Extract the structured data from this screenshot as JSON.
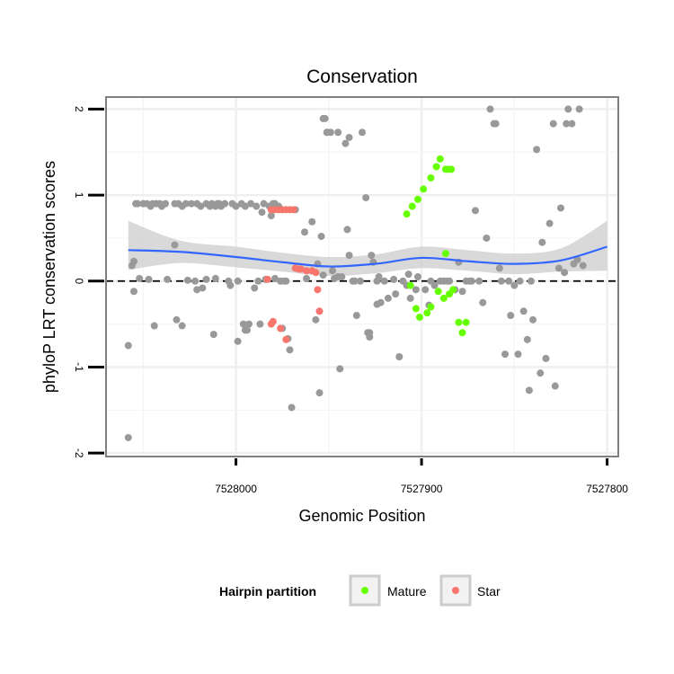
{
  "chart_data": {
    "type": "scatter",
    "title": "Conservation",
    "xlabel": "Genomic Position",
    "ylabel": "phyloP LRT conservation scores",
    "x_reversed": true,
    "xlim": [
      7528070,
      7527794
    ],
    "ylim": [
      -2.04,
      2.14
    ],
    "x_ticks": [
      7528000,
      7527900,
      7527800
    ],
    "x_tick_labels": [
      "7528000",
      "7527900",
      "7527800"
    ],
    "y_ticks": [
      -2,
      -1,
      0,
      1,
      2
    ],
    "y_tick_labels": [
      "-2",
      "-1",
      "0",
      "1",
      "2"
    ],
    "grid": true,
    "reference_line": {
      "y": 0,
      "style": "dashed",
      "color": "#000000"
    },
    "smooth": {
      "method": "loess",
      "color": "#3366ff",
      "band_color": "#cccccc",
      "x": [
        7528058,
        7528030,
        7528000,
        7527975,
        7527950,
        7527925,
        7527900,
        7527875,
        7527850,
        7527825,
        7527800
      ],
      "y": [
        0.36,
        0.34,
        0.28,
        0.22,
        0.17,
        0.2,
        0.27,
        0.23,
        0.2,
        0.24,
        0.4
      ],
      "lower": [
        0.13,
        0.21,
        0.16,
        0.11,
        0.06,
        0.09,
        0.15,
        0.12,
        0.08,
        0.11,
        0.12
      ],
      "upper": [
        0.7,
        0.47,
        0.4,
        0.33,
        0.28,
        0.31,
        0.4,
        0.36,
        0.32,
        0.38,
        0.7
      ]
    },
    "series": [
      {
        "key": "other",
        "color": "#999999",
        "points": [
          [
            7528058,
            -1.82
          ],
          [
            7528058,
            -0.75
          ],
          [
            7528056,
            0.18
          ],
          [
            7528055,
            0.23
          ],
          [
            7528055,
            -0.12
          ],
          [
            7528054,
            0.9
          ],
          [
            7528053,
            0.9
          ],
          [
            7528052,
            0.03
          ],
          [
            7528050,
            0.9
          ],
          [
            7528048,
            0.9
          ],
          [
            7528047,
            0.02
          ],
          [
            7528046,
            0.87
          ],
          [
            7528045,
            0.9
          ],
          [
            7528044,
            -0.52
          ],
          [
            7528043,
            0.9
          ],
          [
            7528041,
            0.9
          ],
          [
            7528040,
            0.87
          ],
          [
            7528038,
            0.9
          ],
          [
            7528037,
            0.02
          ],
          [
            7528033,
            0.42
          ],
          [
            7528033,
            0.9
          ],
          [
            7528032,
            -0.45
          ],
          [
            7528031,
            0.9
          ],
          [
            7528029,
            -0.52
          ],
          [
            7528029,
            0.87
          ],
          [
            7528027,
            0.9
          ],
          [
            7528026,
            0.01
          ],
          [
            7528024,
            0.9
          ],
          [
            7528022,
            0.0
          ],
          [
            7528021,
            -0.1
          ],
          [
            7528021,
            0.9
          ],
          [
            7528019,
            0.87
          ],
          [
            7528018,
            -0.08
          ],
          [
            7528016,
            0.9
          ],
          [
            7528016,
            0.02
          ],
          [
            7528014,
            0.87
          ],
          [
            7528013,
            0.9
          ],
          [
            7528012,
            -0.62
          ],
          [
            7528011,
            0.03
          ],
          [
            7528011,
            0.87
          ],
          [
            7528010,
            0.9
          ],
          [
            7528009,
            0.9
          ],
          [
            7528008,
            0.87
          ],
          [
            7528006,
            0.9
          ],
          [
            7528004,
            0.0
          ],
          [
            7528003,
            -0.05
          ],
          [
            7528002,
            0.9
          ],
          [
            7528000,
            0.87
          ],
          [
            7527999,
            -0.7
          ],
          [
            7527999,
            0.0
          ],
          [
            7527997,
            0.9
          ],
          [
            7527996,
            -0.5
          ],
          [
            7527995,
            0.87
          ],
          [
            7527995,
            -0.57
          ],
          [
            7527994,
            -0.57
          ],
          [
            7527993,
            -0.5
          ],
          [
            7527992,
            0.9
          ],
          [
            7527990,
            -0.08
          ],
          [
            7527989,
            0.87
          ],
          [
            7527988,
            0.0
          ],
          [
            7527987,
            -0.5
          ],
          [
            7527986,
            0.8
          ],
          [
            7527985,
            0.9
          ],
          [
            7527984,
            0.02
          ],
          [
            7527982,
            0.87
          ],
          [
            7527981,
            0.76
          ],
          [
            7527980,
            0.9
          ],
          [
            7527979,
            0.9
          ],
          [
            7527979,
            0.03
          ],
          [
            7527977,
            0.87
          ],
          [
            7527976,
            0.0
          ],
          [
            7527975,
            -0.55
          ],
          [
            7527974,
            0.0
          ],
          [
            7527973,
            0.0
          ],
          [
            7527972,
            -0.67
          ],
          [
            7527971,
            -0.8
          ],
          [
            7527970,
            -1.47
          ],
          [
            7527968,
            0.83
          ],
          [
            7527963,
            0.57
          ],
          [
            7527962,
            0.03
          ],
          [
            7527959,
            0.69
          ],
          [
            7527957,
            -0.45
          ],
          [
            7527956,
            0.2
          ],
          [
            7527955,
            -1.3
          ],
          [
            7527954,
            0.52
          ],
          [
            7527953,
            0.07
          ],
          [
            7527953,
            1.89
          ],
          [
            7527952,
            1.89
          ],
          [
            7527951,
            1.73
          ],
          [
            7527951,
            1.73
          ],
          [
            7527949,
            1.73
          ],
          [
            7527948,
            0.12
          ],
          [
            7527947,
            0.03
          ],
          [
            7527945,
            1.73
          ],
          [
            7527945,
            0.05
          ],
          [
            7527944,
            -1.02
          ],
          [
            7527943,
            0.05
          ],
          [
            7527941,
            1.6
          ],
          [
            7527940,
            0.6
          ],
          [
            7527939,
            1.67
          ],
          [
            7527939,
            0.3
          ],
          [
            7527937,
            0.0
          ],
          [
            7527936,
            0.0
          ],
          [
            7527935,
            -0.4
          ],
          [
            7527933,
            0.0
          ],
          [
            7527932,
            1.73
          ],
          [
            7527930,
            0.97
          ],
          [
            7527929,
            -0.6
          ],
          [
            7527928,
            -0.6
          ],
          [
            7527928,
            -0.65
          ],
          [
            7527927,
            0.3
          ],
          [
            7527926,
            0.22
          ],
          [
            7527924,
            0.0
          ],
          [
            7527924,
            -0.27
          ],
          [
            7527923,
            0.05
          ],
          [
            7527922,
            -0.25
          ],
          [
            7527920,
            0.0
          ],
          [
            7527918,
            -0.2
          ],
          [
            7527915,
            0.02
          ],
          [
            7527914,
            -0.15
          ],
          [
            7527912,
            -0.88
          ],
          [
            7527910,
            0.0
          ],
          [
            7527908,
            -0.05
          ],
          [
            7527907,
            0.08
          ],
          [
            7527906,
            -0.2
          ],
          [
            7527903,
            -0.1
          ],
          [
            7527902,
            0.05
          ],
          [
            7527898,
            -0.1
          ],
          [
            7527896,
            -0.28
          ],
          [
            7527895,
            0.0
          ],
          [
            7527893,
            -0.05
          ],
          [
            7527890,
            0.0
          ],
          [
            7527888,
            0.0
          ],
          [
            7527886,
            0.0
          ],
          [
            7527885,
            0.0
          ],
          [
            7527882,
            -0.1
          ],
          [
            7527880,
            0.22
          ],
          [
            7527878,
            -0.12
          ],
          [
            7527876,
            0.0
          ],
          [
            7527874,
            0.0
          ],
          [
            7527873,
            0.0
          ],
          [
            7527871,
            0.82
          ],
          [
            7527869,
            0.0
          ],
          [
            7527867,
            -0.25
          ],
          [
            7527865,
            0.5
          ],
          [
            7527863,
            2.0
          ],
          [
            7527861,
            1.83
          ],
          [
            7527860,
            1.83
          ],
          [
            7527858,
            0.15
          ],
          [
            7527857,
            0.0
          ],
          [
            7527855,
            -0.85
          ],
          [
            7527853,
            0.0
          ],
          [
            7527852,
            -0.4
          ],
          [
            7527850,
            -0.05
          ],
          [
            7527848,
            -0.85
          ],
          [
            7527847,
            0.0
          ],
          [
            7527845,
            -0.35
          ],
          [
            7527843,
            -0.68
          ],
          [
            7527842,
            -1.27
          ],
          [
            7527841,
            0.0
          ],
          [
            7527840,
            -0.45
          ],
          [
            7527838,
            1.53
          ],
          [
            7527836,
            -1.07
          ],
          [
            7527835,
            0.45
          ],
          [
            7527833,
            -0.9
          ],
          [
            7527831,
            0.67
          ],
          [
            7527829,
            1.83
          ],
          [
            7527828,
            -1.22
          ],
          [
            7527826,
            0.15
          ],
          [
            7527825,
            0.85
          ],
          [
            7527823,
            0.1
          ],
          [
            7527822,
            1.83
          ],
          [
            7527821,
            2.0
          ],
          [
            7527819,
            1.83
          ],
          [
            7527818,
            0.2
          ],
          [
            7527816,
            0.25
          ],
          [
            7527815,
            2.0
          ],
          [
            7527813,
            0.18
          ]
        ]
      },
      {
        "key": "mature",
        "name": "Mature",
        "color": "#66ff00",
        "points": [
          [
            7527908,
            0.78
          ],
          [
            7527905,
            0.87
          ],
          [
            7527902,
            0.95
          ],
          [
            7527899,
            1.07
          ],
          [
            7527895,
            1.2
          ],
          [
            7527892,
            1.33
          ],
          [
            7527890,
            1.42
          ],
          [
            7527887,
            1.3
          ],
          [
            7527886,
            1.3
          ],
          [
            7527884,
            1.3
          ],
          [
            7527887,
            0.32
          ],
          [
            7527906,
            -0.05
          ],
          [
            7527903,
            -0.32
          ],
          [
            7527901,
            -0.42
          ],
          [
            7527897,
            -0.37
          ],
          [
            7527895,
            -0.3
          ],
          [
            7527891,
            -0.12
          ],
          [
            7527888,
            -0.2
          ],
          [
            7527885,
            -0.15
          ],
          [
            7527883,
            -0.1
          ],
          [
            7527880,
            -0.48
          ],
          [
            7527878,
            -0.6
          ],
          [
            7527876,
            -0.48
          ]
        ]
      },
      {
        "key": "star",
        "name": "Star",
        "color": "#f8766d",
        "points": [
          [
            7527981,
            0.83
          ],
          [
            7527979,
            0.83
          ],
          [
            7527977,
            0.83
          ],
          [
            7527975,
            0.83
          ],
          [
            7527973,
            0.83
          ],
          [
            7527971,
            0.83
          ],
          [
            7527969,
            0.83
          ],
          [
            7527968,
            0.15
          ],
          [
            7527965,
            0.14
          ],
          [
            7527962,
            0.12
          ],
          [
            7527959,
            0.12
          ],
          [
            7527957,
            0.1
          ],
          [
            7527966,
            0.14
          ],
          [
            7527983,
            0.02
          ],
          [
            7527956,
            -0.1
          ],
          [
            7527955,
            -0.35
          ],
          [
            7527980,
            -0.47
          ],
          [
            7527976,
            -0.55
          ],
          [
            7527973,
            -0.68
          ],
          [
            7527981,
            -0.5
          ]
        ]
      }
    ],
    "legend": {
      "title": "Hairpin partition",
      "position": "bottom",
      "entries": [
        {
          "label": "Mature",
          "color": "#66ff00"
        },
        {
          "label": "Star",
          "color": "#f8766d"
        }
      ]
    }
  }
}
